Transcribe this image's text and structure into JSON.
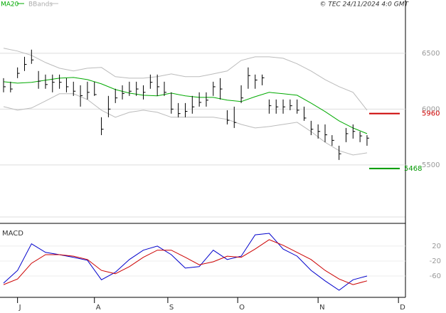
{
  "legend": {
    "ma": "MA20",
    "bands": "BBands"
  },
  "source": "© TEC 24/11/2024 4:0 GMT",
  "chart_data": [
    {
      "type": "ohlc",
      "xlim": [
        0,
        115
      ],
      "ylim": [
        4990,
        6900
      ],
      "yticks": [
        5500,
        6000,
        6500
      ],
      "grid": true,
      "bars": {
        "color": "#000000",
        "x": [
          0,
          2,
          4,
          6,
          8,
          10,
          12,
          14,
          16,
          18,
          20,
          22,
          24,
          26,
          28,
          30,
          32,
          34,
          36,
          38,
          40,
          42,
          44,
          46,
          48,
          50,
          52,
          54,
          56,
          58,
          60,
          62,
          64,
          66,
          68,
          70,
          72,
          74,
          76,
          78,
          80,
          82,
          84,
          86,
          88,
          90,
          92,
          94,
          96,
          98,
          100,
          102,
          104
        ],
        "high": [
          6277,
          6245,
          6373,
          6468,
          6532,
          6341,
          6309,
          6309,
          6309,
          6277,
          6245,
          6213,
          6245,
          6245,
          5927,
          6118,
          6182,
          6213,
          6245,
          6245,
          6213,
          6309,
          6309,
          6245,
          6150,
          6054,
          6054,
          6118,
          6150,
          6150,
          6245,
          6277,
          5990,
          6022,
          6213,
          6373,
          6309,
          6309,
          6086,
          6086,
          6086,
          6086,
          6086,
          6022,
          5895,
          5863,
          5863,
          5767,
          5672,
          5831,
          5863,
          5799,
          5767
        ],
        "low": [
          6150,
          6150,
          6277,
          6341,
          6405,
          6182,
          6182,
          6150,
          6182,
          6150,
          6118,
          6022,
          6086,
          6118,
          5767,
          5927,
          6054,
          6086,
          6118,
          6118,
          6086,
          6182,
          6118,
          6118,
          5959,
          5927,
          5927,
          5959,
          6022,
          6022,
          6118,
          6086,
          5863,
          5831,
          6054,
          6182,
          6182,
          6213,
          5959,
          5959,
          5959,
          5990,
          5959,
          5895,
          5767,
          5736,
          5704,
          5672,
          5545,
          5704,
          5736,
          5704,
          5672
        ],
        "close": [
          6200,
          6180,
          6320,
          6400,
          6440,
          6250,
          6220,
          6240,
          6240,
          6200,
          6160,
          6120,
          6150,
          6130,
          5820,
          6000,
          6100,
          6140,
          6160,
          6180,
          6150,
          6240,
          6200,
          6150,
          6000,
          5960,
          5980,
          6020,
          6060,
          6080,
          6200,
          6180,
          5900,
          5880,
          6100,
          6300,
          6260,
          6280,
          6030,
          6020,
          6020,
          6030,
          5990,
          5920,
          5820,
          5800,
          5770,
          5720,
          5600,
          5780,
          5800,
          5760,
          5740
        ]
      },
      "ma": {
        "name": "MA20",
        "color": "#00aa00",
        "x": [
          0,
          4,
          8,
          12,
          16,
          20,
          24,
          28,
          32,
          36,
          40,
          44,
          48,
          52,
          56,
          60,
          64,
          68,
          72,
          76,
          80,
          84,
          88,
          92,
          96,
          100,
          104
        ],
        "values": [
          6245,
          6232,
          6239,
          6258,
          6277,
          6283,
          6264,
          6226,
          6175,
          6143,
          6124,
          6118,
          6143,
          6118,
          6105,
          6105,
          6080,
          6067,
          6111,
          6150,
          6137,
          6124,
          6054,
          5978,
          5895,
          5831,
          5780
        ]
      },
      "bands": {
        "name": "BBands",
        "color": "#bbbbbb",
        "x": [
          0,
          4,
          8,
          12,
          16,
          20,
          24,
          28,
          32,
          36,
          40,
          44,
          48,
          52,
          56,
          60,
          64,
          68,
          72,
          76,
          80,
          84,
          88,
          92,
          96,
          100,
          104
        ],
        "upper": [
          6545,
          6519,
          6481,
          6417,
          6366,
          6341,
          6366,
          6373,
          6290,
          6277,
          6277,
          6290,
          6315,
          6290,
          6290,
          6315,
          6341,
          6436,
          6468,
          6468,
          6455,
          6405,
          6341,
          6264,
          6201,
          6150,
          5990
        ],
        "lower": [
          6022,
          5990,
          6010,
          6073,
          6137,
          6137,
          6086,
          5990,
          5927,
          5971,
          5990,
          5971,
          5927,
          5927,
          5927,
          5927,
          5908,
          5863,
          5831,
          5844,
          5863,
          5882,
          5799,
          5704,
          5628,
          5589,
          5608
        ]
      },
      "levels": [
        {
          "value": 5960,
          "color": "#cc0000"
        },
        {
          "value": 5468,
          "color": "#009900"
        }
      ]
    },
    {
      "type": "line",
      "title": "MACD",
      "xlim": [
        0,
        115
      ],
      "ylim": [
        -117,
        73
      ],
      "yticks": [
        20,
        -20,
        -60
      ],
      "grid": true,
      "xticks": [
        {
          "value": 4,
          "label": "J"
        },
        {
          "value": 26,
          "label": "A"
        },
        {
          "value": 47,
          "label": "S"
        },
        {
          "value": 67,
          "label": "O"
        },
        {
          "value": 90,
          "label": "N"
        },
        {
          "value": 113,
          "label": "D"
        }
      ],
      "x": [
        0,
        4,
        8,
        12,
        16,
        20,
        24,
        28,
        32,
        36,
        40,
        44,
        48,
        52,
        56,
        60,
        64,
        68,
        72,
        76,
        80,
        84,
        88,
        92,
        96,
        100,
        104
      ],
      "series": [
        {
          "color": "#0000cc",
          "values": [
            -79,
            -45,
            26,
            3,
            -3,
            -10,
            -18,
            -70,
            -50,
            -16,
            9,
            20,
            -3,
            -39,
            -35,
            9,
            -16,
            -7,
            50,
            54,
            12,
            -7,
            -45,
            -73,
            -98,
            -70,
            -60
          ]
        },
        {
          "color": "#cc0000",
          "values": [
            -83,
            -68,
            -26,
            -3,
            -3,
            -7,
            -16,
            -45,
            -54,
            -35,
            -10,
            9,
            9,
            -10,
            -30,
            -22,
            -7,
            -10,
            12,
            37,
            22,
            3,
            -16,
            -45,
            -68,
            -83,
            -73
          ]
        }
      ]
    }
  ]
}
